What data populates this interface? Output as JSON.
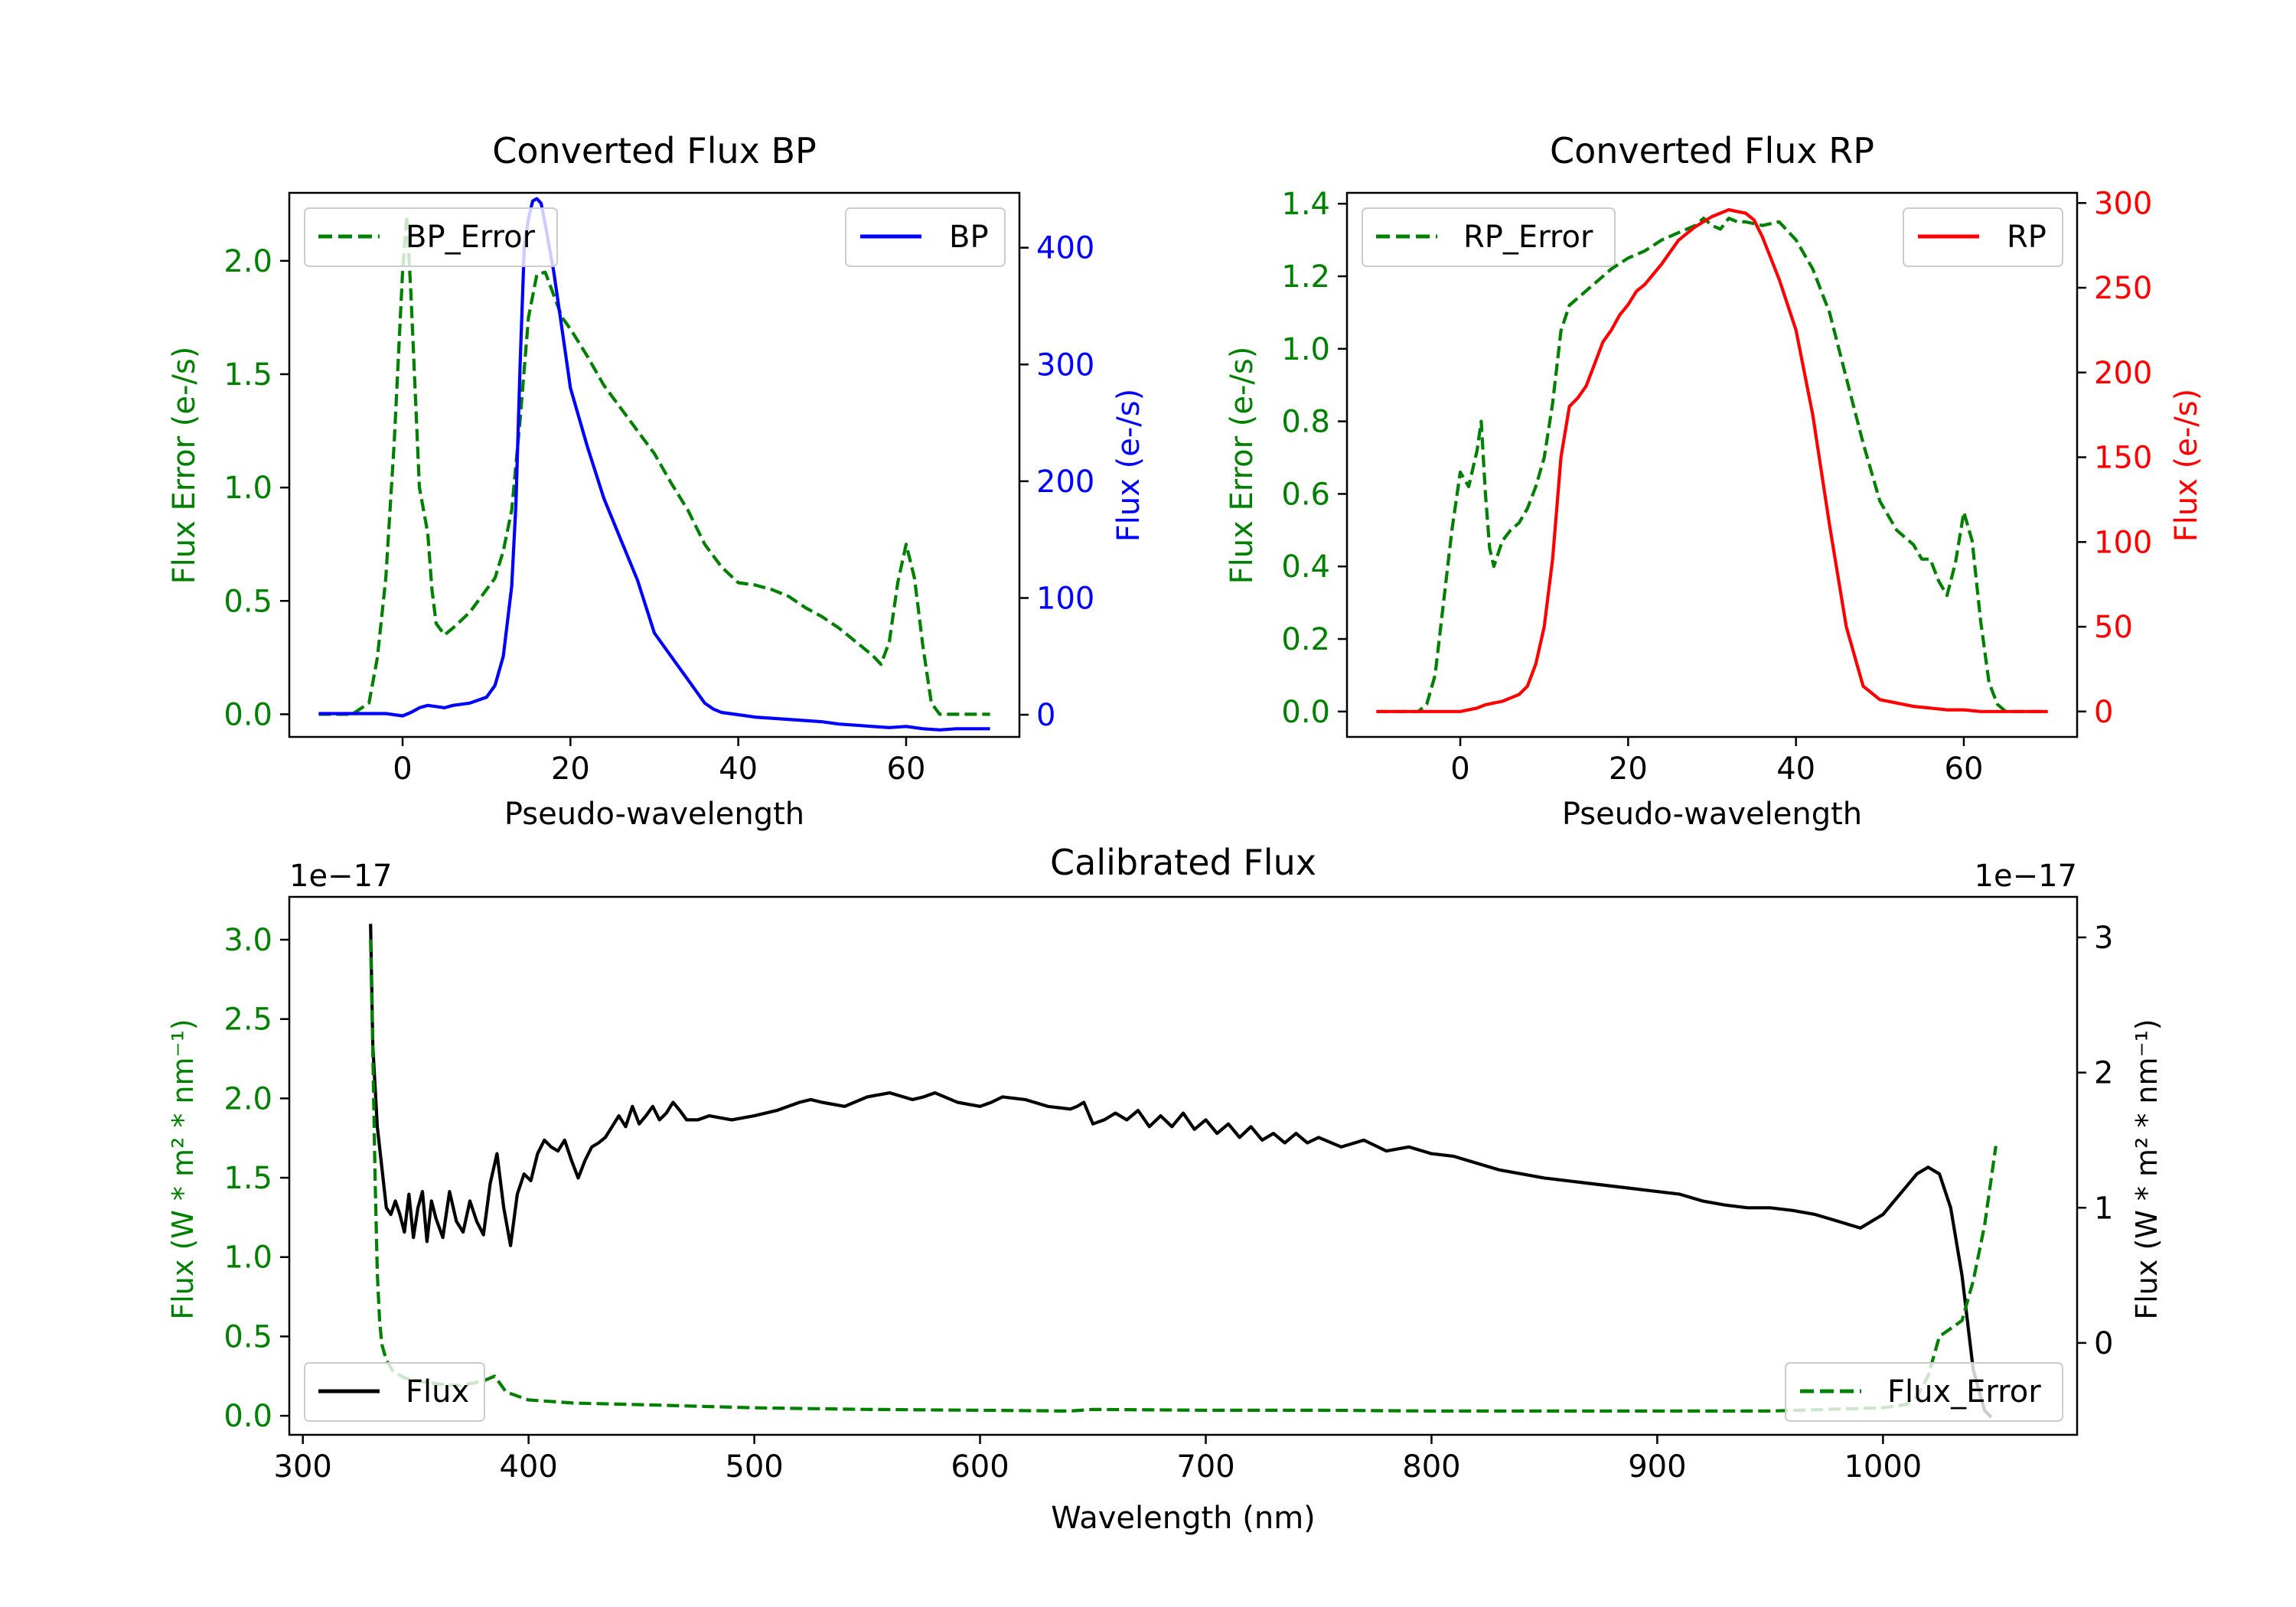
{
  "figure": {
    "background": "#ffffff"
  },
  "colors": {
    "green": "#008000",
    "blue": "#0000ff",
    "red": "#ff0000",
    "black": "#000000"
  },
  "chart_data": [
    {
      "id": "bp",
      "type": "line",
      "title": "Converted Flux BP",
      "xlabel": "Pseudo-wavelength",
      "xlim": [
        -13.5,
        73.5
      ],
      "xticks": [
        0,
        20,
        40,
        60
      ],
      "left_axis": {
        "label": "Flux Error (e-/s)",
        "color": "#008000",
        "ylim": [
          -0.1,
          2.3
        ],
        "ticks": [
          0.0,
          0.5,
          1.0,
          1.5,
          2.0
        ],
        "tick_format": "1"
      },
      "right_axis": {
        "label": "Flux (e-/s)",
        "color": "#0000ff",
        "ylim": [
          -19,
          447
        ],
        "ticks": [
          0,
          100,
          200,
          300,
          400
        ],
        "tick_format": "0"
      },
      "series": [
        {
          "name": "BP_Error",
          "axis": "left",
          "color": "#008000",
          "style": "dashed",
          "x": [
            -10,
            -6,
            -4,
            -3,
            -2,
            -1,
            0,
            0.5,
            1,
            2,
            3,
            3.5,
            4,
            5,
            6,
            8,
            10,
            11,
            12,
            13,
            14,
            15,
            16,
            17,
            18,
            19,
            20,
            22,
            24,
            26,
            28,
            30,
            32,
            34,
            36,
            38,
            40,
            42,
            44,
            46,
            48,
            50,
            52,
            54,
            56,
            57,
            58,
            59,
            60,
            61,
            62,
            63,
            64,
            70
          ],
          "y": [
            0.0,
            0.0,
            0.05,
            0.25,
            0.6,
            1.2,
            1.95,
            2.2,
            1.85,
            1.0,
            0.8,
            0.55,
            0.4,
            0.35,
            0.38,
            0.45,
            0.55,
            0.6,
            0.72,
            0.9,
            1.3,
            1.75,
            1.94,
            1.95,
            1.85,
            1.75,
            1.7,
            1.58,
            1.45,
            1.35,
            1.25,
            1.15,
            1.02,
            0.9,
            0.75,
            0.65,
            0.58,
            0.57,
            0.55,
            0.52,
            0.47,
            0.43,
            0.38,
            0.32,
            0.26,
            0.22,
            0.32,
            0.58,
            0.75,
            0.6,
            0.3,
            0.05,
            0.0,
            0.0
          ]
        },
        {
          "name": "BP",
          "axis": "right",
          "color": "#0000ff",
          "style": "solid",
          "x": [
            -10,
            -6,
            -4,
            -2,
            0,
            1,
            2,
            3,
            4,
            5,
            6,
            8,
            10,
            11,
            12,
            13,
            13.5,
            14,
            14.5,
            15,
            15.5,
            16,
            16.5,
            17,
            18,
            19,
            20,
            22,
            24,
            26,
            28,
            30,
            32,
            34,
            36,
            37,
            38,
            40,
            42,
            44,
            46,
            48,
            50,
            52,
            54,
            56,
            58,
            60,
            62,
            64,
            66,
            68,
            70
          ],
          "y": [
            1,
            1,
            1,
            1,
            -1,
            2,
            6,
            8,
            7,
            6,
            8,
            10,
            15,
            25,
            50,
            110,
            180,
            300,
            400,
            425,
            440,
            442,
            438,
            420,
            380,
            330,
            280,
            230,
            185,
            150,
            115,
            70,
            50,
            30,
            10,
            5,
            2,
            0,
            -2,
            -3,
            -4,
            -5,
            -6,
            -8,
            -9,
            -10,
            -11,
            -10,
            -12,
            -13,
            -12,
            -12,
            -12
          ]
        }
      ]
    },
    {
      "id": "rp",
      "type": "line",
      "title": "Converted Flux RP",
      "xlabel": "Pseudo-wavelength",
      "xlim": [
        -13.5,
        73.5
      ],
      "xticks": [
        0,
        20,
        40,
        60
      ],
      "left_axis": {
        "label": "Flux Error (e-/s)",
        "color": "#008000",
        "ylim": [
          -0.07,
          1.43
        ],
        "ticks": [
          0.0,
          0.2,
          0.4,
          0.6,
          0.8,
          1.0,
          1.2,
          1.4
        ],
        "tick_format": "1"
      },
      "right_axis": {
        "label": "Flux (e-/s)",
        "color": "#ff0000",
        "ylim": [
          -15,
          306
        ],
        "ticks": [
          0,
          50,
          100,
          150,
          200,
          250,
          300
        ],
        "tick_format": "0"
      },
      "series": [
        {
          "name": "RP_Error",
          "axis": "left",
          "color": "#008000",
          "style": "dashed",
          "x": [
            -10,
            -5,
            -4,
            -3,
            -2,
            -1,
            0,
            1,
            2,
            2.5,
            3,
            3.5,
            4,
            5,
            6,
            7,
            8,
            9,
            10,
            11,
            12,
            13,
            14,
            16,
            18,
            20,
            22,
            24,
            26,
            28,
            29,
            30,
            31,
            32,
            33,
            34,
            36,
            38,
            40,
            42,
            44,
            46,
            48,
            50,
            52,
            54,
            55,
            56,
            57,
            58,
            59,
            60,
            61,
            62,
            63,
            64,
            65,
            70
          ],
          "y": [
            0.0,
            0.0,
            0.02,
            0.1,
            0.3,
            0.5,
            0.66,
            0.62,
            0.72,
            0.8,
            0.6,
            0.45,
            0.4,
            0.47,
            0.5,
            0.52,
            0.56,
            0.62,
            0.7,
            0.85,
            1.05,
            1.12,
            1.14,
            1.18,
            1.22,
            1.25,
            1.27,
            1.3,
            1.32,
            1.34,
            1.36,
            1.34,
            1.33,
            1.36,
            1.35,
            1.35,
            1.34,
            1.35,
            1.3,
            1.22,
            1.1,
            0.92,
            0.74,
            0.58,
            0.5,
            0.46,
            0.42,
            0.42,
            0.36,
            0.32,
            0.41,
            0.55,
            0.47,
            0.25,
            0.08,
            0.02,
            0.0,
            0.0
          ]
        },
        {
          "name": "RP",
          "axis": "right",
          "color": "#ff0000",
          "style": "solid",
          "x": [
            -10,
            -6,
            -4,
            -2,
            0,
            1,
            2,
            3,
            4,
            5,
            6,
            7,
            8,
            9,
            10,
            11,
            12,
            13,
            14,
            15,
            16,
            17,
            18,
            19,
            20,
            21,
            22,
            24,
            26,
            28,
            30,
            31,
            32,
            33,
            34,
            35,
            36,
            38,
            40,
            42,
            44,
            46,
            48,
            50,
            52,
            54,
            56,
            58,
            60,
            62,
            64,
            66,
            70
          ],
          "y": [
            0,
            0,
            0,
            0,
            0,
            1,
            2,
            4,
            5,
            6,
            8,
            10,
            15,
            28,
            50,
            90,
            150,
            180,
            185,
            192,
            205,
            218,
            225,
            234,
            240,
            248,
            252,
            264,
            278,
            286,
            292,
            294,
            296,
            295,
            294,
            290,
            280,
            255,
            225,
            175,
            110,
            50,
            15,
            7,
            5,
            3,
            2,
            1,
            1,
            0,
            0,
            0,
            0
          ]
        }
      ]
    },
    {
      "id": "cal",
      "type": "line",
      "title": "Calibrated Flux",
      "xlabel": "Wavelength (nm)",
      "xlim": [
        294,
        1086
      ],
      "xticks": [
        300,
        400,
        500,
        600,
        700,
        800,
        900,
        1000
      ],
      "left_axis": {
        "label": "Flux (W * m² * nm⁻¹)",
        "color": "#008000",
        "offset_text": "1e−17",
        "ylim": [
          -0.12,
          3.27
        ],
        "ticks": [
          0.0,
          0.5,
          1.0,
          1.5,
          2.0,
          2.5,
          3.0
        ],
        "tick_format": "1"
      },
      "right_axis": {
        "label": "Flux (W * m² * nm⁻¹)",
        "color": "#000000",
        "offset_text": "1e−17",
        "ylim": [
          -0.68,
          3.3
        ],
        "ticks": [
          0,
          1,
          2,
          3
        ],
        "tick_format": "0"
      },
      "series": [
        {
          "name": "Flux",
          "axis": "right",
          "color": "#000000",
          "style": "solid",
          "x": [
            330,
            331,
            333,
            335,
            337,
            339,
            341,
            343,
            345,
            347,
            349,
            351,
            353,
            355,
            357,
            359,
            362,
            365,
            368,
            371,
            374,
            377,
            380,
            383,
            386,
            389,
            392,
            395,
            398,
            401,
            404,
            407,
            410,
            413,
            416,
            419,
            422,
            425,
            428,
            431,
            434,
            437,
            440,
            443,
            446,
            449,
            452,
            455,
            458,
            461,
            464,
            467,
            470,
            475,
            480,
            490,
            500,
            510,
            520,
            525,
            530,
            540,
            550,
            560,
            570,
            575,
            580,
            590,
            600,
            605,
            610,
            620,
            630,
            640,
            643,
            646,
            650,
            655,
            660,
            665,
            670,
            675,
            680,
            685,
            690,
            695,
            700,
            705,
            710,
            715,
            720,
            725,
            730,
            735,
            740,
            745,
            750,
            760,
            770,
            780,
            790,
            800,
            810,
            820,
            830,
            840,
            850,
            860,
            870,
            880,
            890,
            900,
            910,
            920,
            930,
            940,
            950,
            960,
            970,
            980,
            990,
            1000,
            1005,
            1010,
            1015,
            1020,
            1025,
            1030,
            1035,
            1040,
            1045,
            1048
          ],
          "y": [
            3.1,
            2.2,
            1.6,
            1.3,
            1.0,
            0.95,
            1.05,
            0.95,
            0.82,
            1.1,
            0.78,
            1.0,
            1.12,
            0.75,
            1.05,
            0.92,
            0.78,
            1.12,
            0.9,
            0.82,
            1.05,
            0.9,
            0.8,
            1.18,
            1.4,
            1.0,
            0.72,
            1.1,
            1.25,
            1.2,
            1.4,
            1.5,
            1.45,
            1.42,
            1.5,
            1.35,
            1.22,
            1.35,
            1.45,
            1.48,
            1.52,
            1.6,
            1.68,
            1.6,
            1.75,
            1.62,
            1.68,
            1.75,
            1.65,
            1.7,
            1.78,
            1.72,
            1.65,
            1.65,
            1.68,
            1.65,
            1.68,
            1.72,
            1.78,
            1.8,
            1.78,
            1.75,
            1.82,
            1.85,
            1.8,
            1.82,
            1.85,
            1.78,
            1.75,
            1.78,
            1.82,
            1.8,
            1.75,
            1.73,
            1.75,
            1.78,
            1.62,
            1.65,
            1.7,
            1.65,
            1.72,
            1.6,
            1.68,
            1.6,
            1.7,
            1.58,
            1.65,
            1.55,
            1.62,
            1.52,
            1.6,
            1.5,
            1.55,
            1.48,
            1.55,
            1.48,
            1.52,
            1.45,
            1.5,
            1.42,
            1.45,
            1.4,
            1.38,
            1.33,
            1.28,
            1.25,
            1.22,
            1.2,
            1.18,
            1.16,
            1.14,
            1.12,
            1.1,
            1.05,
            1.02,
            1.0,
            1.0,
            0.98,
            0.95,
            0.9,
            0.85,
            0.95,
            1.05,
            1.15,
            1.25,
            1.3,
            1.25,
            1.0,
            0.5,
            -0.2,
            -0.5,
            -0.55
          ]
        },
        {
          "name": "Flux_Error",
          "axis": "left",
          "color": "#008000",
          "style": "dashed",
          "x": [
            330,
            331,
            332,
            333,
            334,
            335,
            337,
            340,
            345,
            350,
            360,
            370,
            380,
            385,
            390,
            400,
            420,
            450,
            500,
            550,
            600,
            640,
            650,
            700,
            750,
            800,
            850,
            900,
            950,
            1000,
            1010,
            1015,
            1020,
            1025,
            1030,
            1035,
            1040,
            1045,
            1050
          ],
          "y": [
            3.0,
            2.3,
            1.5,
            0.9,
            0.6,
            0.45,
            0.35,
            0.28,
            0.24,
            0.22,
            0.2,
            0.19,
            0.22,
            0.25,
            0.15,
            0.1,
            0.08,
            0.07,
            0.05,
            0.04,
            0.035,
            0.03,
            0.04,
            0.035,
            0.035,
            0.03,
            0.03,
            0.03,
            0.03,
            0.05,
            0.07,
            0.12,
            0.25,
            0.5,
            0.55,
            0.6,
            0.85,
            1.2,
            1.7
          ]
        }
      ]
    }
  ]
}
